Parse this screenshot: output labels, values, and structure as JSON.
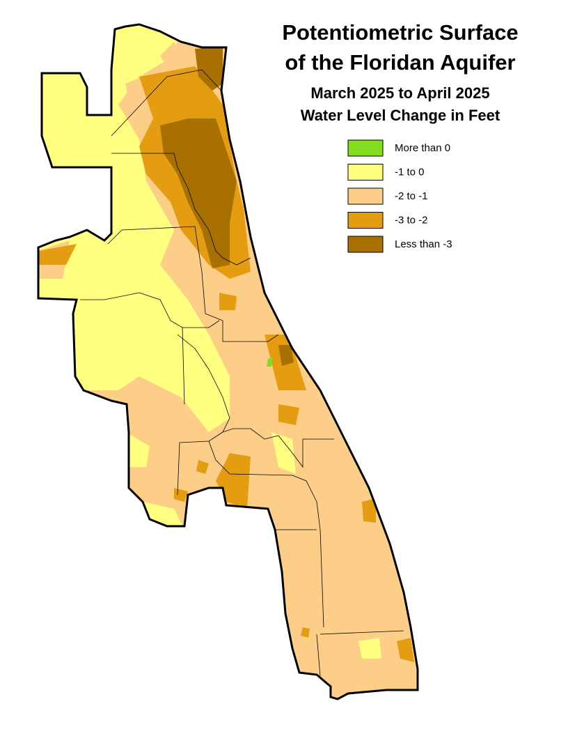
{
  "title": [
    "Potentiometric Surface",
    "of the Floridan Aquifer"
  ],
  "subtitle": [
    "March 2025 to April 2025",
    "Water Level Change in Feet"
  ],
  "legend": [
    {
      "label": "More than 0",
      "color": "#84dc1e"
    },
    {
      "label": "-1 to 0",
      "color": "#ffff80"
    },
    {
      "label": "-2 to -1",
      "color": "#fcce88"
    },
    {
      "label": "-3 to -2",
      "color": "#e49c10"
    },
    {
      "label": "Less than -3",
      "color": "#a87000"
    }
  ]
}
